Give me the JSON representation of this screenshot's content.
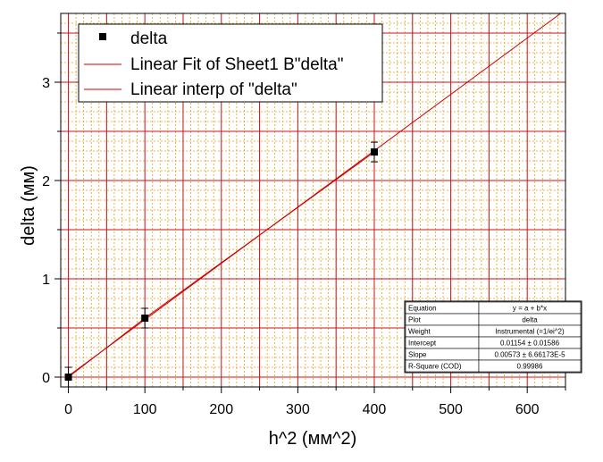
{
  "chart_data": {
    "type": "scatter",
    "xlabel": "h^2 (мм^2)",
    "ylabel": "delta (мм)",
    "xlim": [
      -10,
      650
    ],
    "ylim": [
      -0.1,
      3.7
    ],
    "x_ticks": [
      0,
      100,
      200,
      300,
      400,
      500,
      600
    ],
    "x_tick_labels": [
      "0",
      "100",
      "200",
      "300",
      "400",
      "500",
      "600"
    ],
    "y_ticks": [
      0,
      1,
      2,
      3
    ],
    "y_tick_labels": [
      "0",
      "1",
      "2",
      "3"
    ],
    "grid": true,
    "legend_position": "top-left",
    "colors": {
      "fit": "#cc0000",
      "interp": "#cc0000",
      "marker": "#000000",
      "major_grid": "#d01010",
      "minor_grid": "#e8a020"
    },
    "series": [
      {
        "name": "delta",
        "kind": "points",
        "x": [
          0,
          100,
          400
        ],
        "y": [
          0.0,
          0.6,
          2.29
        ],
        "y_err": [
          0.1,
          0.1,
          0.1
        ]
      },
      {
        "name": "Linear Fit of Sheet1 B\"delta\"",
        "kind": "line",
        "intercept": 0.01154,
        "slope": 0.00573
      },
      {
        "name": "Linear interp of \"delta\"",
        "kind": "line",
        "x": [
          0,
          100,
          400
        ],
        "y": [
          0.0,
          0.6,
          2.29
        ]
      }
    ],
    "stats_table": [
      {
        "label": "Equation",
        "value": "y = a + b*x"
      },
      {
        "label": "Plot",
        "value": "delta"
      },
      {
        "label": "Weight",
        "value": "Instrumental (=1/ei^2)"
      },
      {
        "label": "Intercept",
        "value": "0.01154 ± 0.01586"
      },
      {
        "label": "Slope",
        "value": "0.00573 ± 6.66173E-5"
      },
      {
        "label": "R-Square (COD)",
        "value": "0.99986"
      }
    ]
  }
}
